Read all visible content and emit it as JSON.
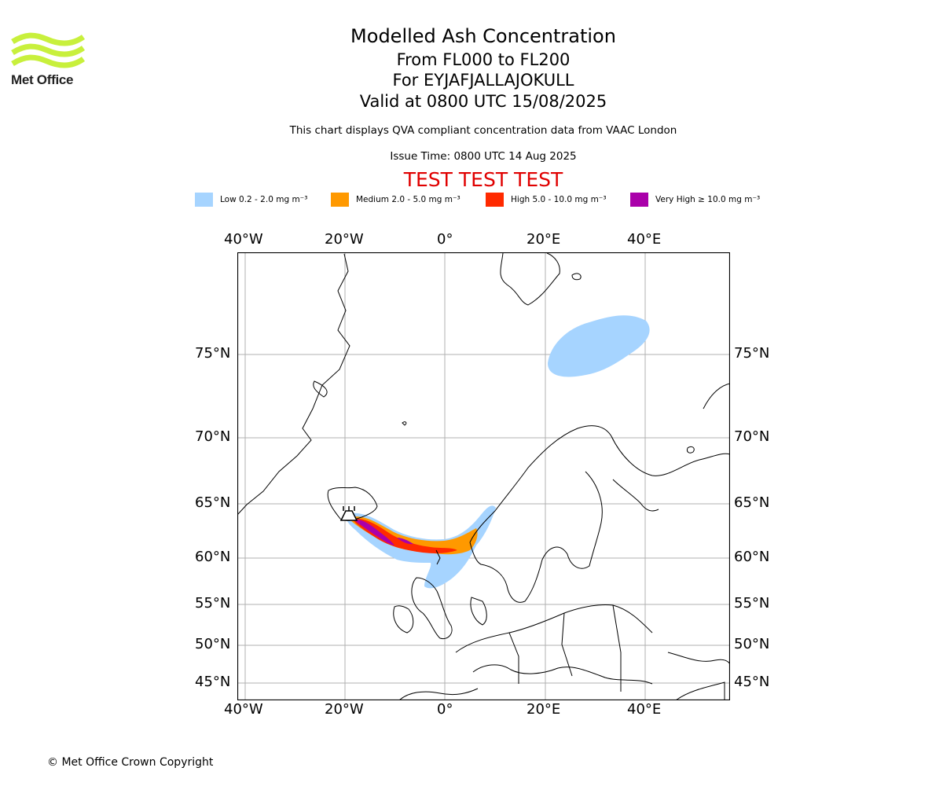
{
  "header": {
    "logo_text": "Met Office",
    "title": "Modelled Ash Concentration",
    "levels": "From FL000 to FL200",
    "volcano": "For EYJAFJALLAJOKULL",
    "valid": "Valid at 0800 UTC 15/08/2025",
    "description": "This chart displays QVA compliant concentration data from VAAC London",
    "issue_time": "Issue Time: 0800 UTC 14 Aug 2025",
    "test_banner": "TEST TEST TEST"
  },
  "legend": [
    {
      "label": "Low 0.2 - 2.0 mg m⁻³",
      "color": "#a6d4ff"
    },
    {
      "label": "Medium 2.0 - 5.0 mg m⁻³",
      "color": "#ff9900"
    },
    {
      "label": "High 5.0 - 10.0 mg m⁻³",
      "color": "#ff2a00"
    },
    {
      "label": "Very High ≥ 10.0 mg m⁻³",
      "color": "#aa00aa"
    }
  ],
  "map": {
    "lon_ticks": [
      "40°W",
      "20°W",
      "0°",
      "20°E",
      "40°E"
    ],
    "lat_ticks": [
      "75°N",
      "70°N",
      "65°N",
      "60°N",
      "55°N",
      "50°N",
      "45°N"
    ],
    "colors": {
      "grid": "#b0b0b0",
      "coast": "#000000",
      "frame": "#000000"
    }
  },
  "footer": {
    "copyright": "© Met Office Crown Copyright"
  }
}
